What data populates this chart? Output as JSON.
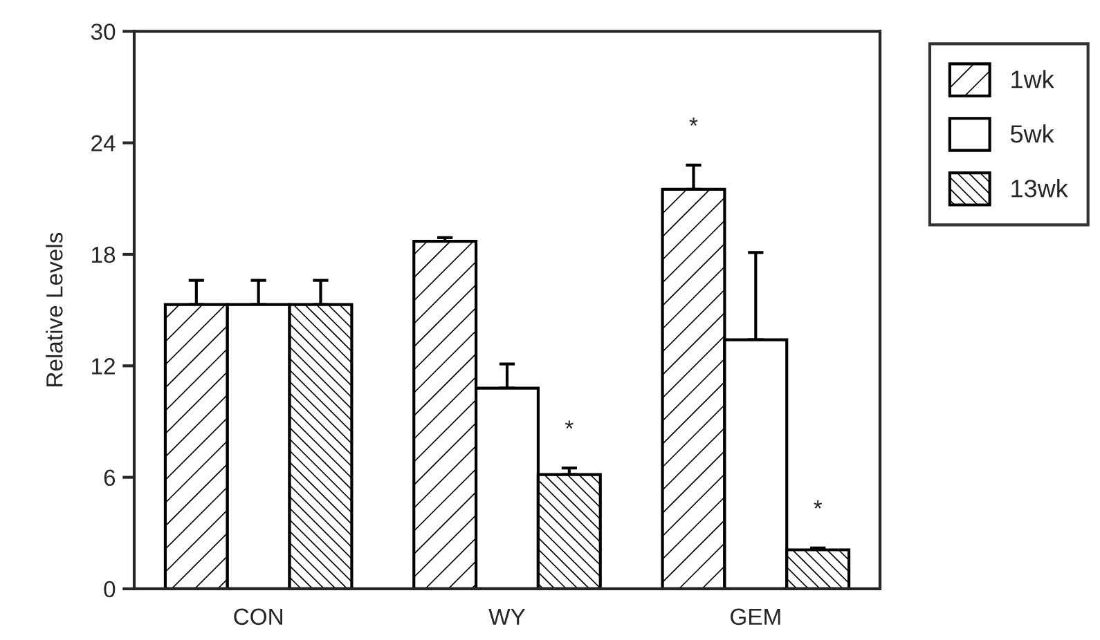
{
  "chart_data": {
    "type": "bar",
    "ylabel": "Relative Levels",
    "categories": [
      "CON",
      "WY",
      "GEM"
    ],
    "series": [
      {
        "name": "1wk",
        "color": "#ffffff",
        "values": [
          15.3,
          18.7,
          21.5
        ],
        "errors": [
          [
            15.3,
            16.6
          ],
          [
            18.7,
            18.9
          ],
          [
            21.5,
            22.8
          ]
        ],
        "value_labels": [
          null,
          null,
          "*"
        ]
      },
      {
        "name": "5wk",
        "color": "#ffffff",
        "values": [
          15.3,
          10.8,
          13.4
        ],
        "errors": [
          [
            15.3,
            16.6
          ],
          [
            10.8,
            12.1
          ],
          [
            13.4,
            18.1
          ]
        ]
      },
      {
        "name": "13wk",
        "color": "#ffffff",
        "values": [
          15.3,
          6.15,
          2.1
        ],
        "errors": [
          [
            15.3,
            16.6
          ],
          [
            6.15,
            6.5
          ],
          [
            2.1,
            2.2
          ]
        ],
        "value_labels": [
          null,
          "*",
          "*"
        ]
      }
    ],
    "ylim": [
      0,
      30
    ],
    "yticks": [
      0,
      6,
      12,
      18,
      24,
      30
    ],
    "grid": false,
    "legend": "top right"
  }
}
